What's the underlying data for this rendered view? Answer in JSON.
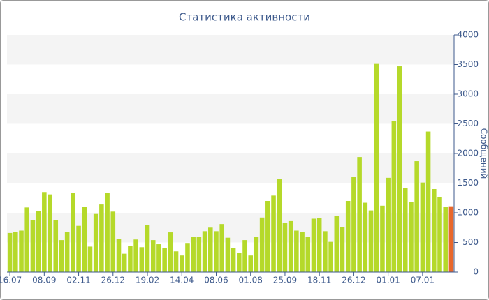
{
  "chart_data": {
    "type": "bar",
    "title": "Статистика активности",
    "y_label": "Сообщений",
    "categories": [
      "16.07",
      null,
      null,
      null,
      null,
      null,
      "08.09",
      null,
      null,
      null,
      null,
      null,
      "02.11",
      null,
      null,
      null,
      null,
      null,
      "26.12",
      null,
      null,
      null,
      null,
      null,
      "19.02",
      null,
      null,
      null,
      null,
      null,
      "14.04",
      null,
      null,
      null,
      null,
      null,
      "08.06",
      null,
      null,
      null,
      null,
      null,
      "01.08",
      null,
      null,
      null,
      null,
      null,
      "25.09",
      null,
      null,
      null,
      null,
      null,
      "18.11",
      null,
      null,
      null,
      null,
      null,
      "26.12",
      null,
      null,
      null,
      null,
      null,
      "01.01",
      null,
      null,
      null,
      null,
      null,
      "07.01",
      null,
      null,
      null,
      null,
      null
    ],
    "values": [
      660,
      680,
      700,
      1090,
      880,
      1030,
      1350,
      1310,
      880,
      540,
      680,
      1340,
      780,
      1100,
      430,
      980,
      1140,
      1340,
      1020,
      560,
      310,
      440,
      550,
      420,
      790,
      540,
      470,
      400,
      670,
      350,
      280,
      480,
      590,
      600,
      690,
      750,
      690,
      810,
      580,
      400,
      320,
      540,
      280,
      590,
      920,
      1200,
      1290,
      1570,
      830,
      860,
      700,
      680,
      590,
      900,
      910,
      690,
      510,
      950,
      760,
      1200,
      1610,
      1940,
      1170,
      1040,
      3510,
      1120,
      1590,
      2550,
      3470,
      1420,
      1180,
      1870,
      1510,
      2370,
      1400,
      1260,
      1100,
      1110
    ],
    "colors": [
      "#b5d92a",
      "#b5d92a",
      "#b5d92a",
      "#b5d92a",
      "#b5d92a",
      "#b5d92a",
      "#b5d92a",
      "#b5d92a",
      "#b5d92a",
      "#b5d92a",
      "#b5d92a",
      "#b5d92a",
      "#b5d92a",
      "#b5d92a",
      "#b5d92a",
      "#b5d92a",
      "#b5d92a",
      "#b5d92a",
      "#b5d92a",
      "#b5d92a",
      "#b5d92a",
      "#b5d92a",
      "#b5d92a",
      "#b5d92a",
      "#b5d92a",
      "#b5d92a",
      "#b5d92a",
      "#b5d92a",
      "#b5d92a",
      "#b5d92a",
      "#b5d92a",
      "#b5d92a",
      "#b5d92a",
      "#b5d92a",
      "#b5d92a",
      "#b5d92a",
      "#b5d92a",
      "#b5d92a",
      "#b5d92a",
      "#b5d92a",
      "#b5d92a",
      "#b5d92a",
      "#b5d92a",
      "#b5d92a",
      "#b5d92a",
      "#b5d92a",
      "#b5d92a",
      "#b5d92a",
      "#b5d92a",
      "#b5d92a",
      "#b5d92a",
      "#b5d92a",
      "#b5d92a",
      "#b5d92a",
      "#b5d92a",
      "#b5d92a",
      "#b5d92a",
      "#b5d92a",
      "#b5d92a",
      "#b5d92a",
      "#b5d92a",
      "#b5d92a",
      "#b5d92a",
      "#b5d92a",
      "#b5d92a",
      "#b5d92a",
      "#b5d92a",
      "#b5d92a",
      "#b5d92a",
      "#b5d92a",
      "#b5d92a",
      "#b5d92a",
      "#b5d92a",
      "#b5d92a",
      "#b5d92a",
      "#b5d92a",
      "#b5d92a",
      "#e8672b"
    ],
    "ylim": [
      0,
      4000
    ],
    "yticks": [
      0,
      500,
      1000,
      1500,
      2000,
      2500,
      3000,
      3500,
      4000
    ],
    "y_axis_side": "right",
    "grid": true
  }
}
